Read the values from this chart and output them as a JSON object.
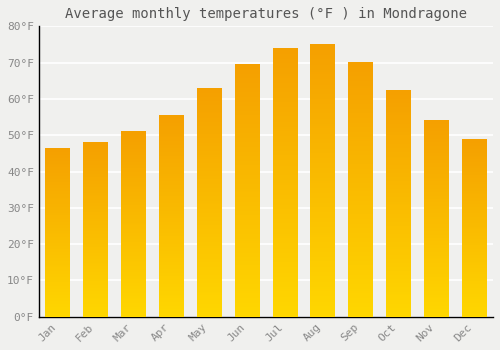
{
  "title": "Average monthly temperatures (°F ) in Mondragone",
  "months": [
    "Jan",
    "Feb",
    "Mar",
    "Apr",
    "May",
    "Jun",
    "Jul",
    "Aug",
    "Sep",
    "Oct",
    "Nov",
    "Dec"
  ],
  "values": [
    46.5,
    48.0,
    51.0,
    55.5,
    63.0,
    69.5,
    74.0,
    75.0,
    70.0,
    62.5,
    54.0,
    49.0
  ],
  "bar_color_bottom": "#FFD700",
  "bar_color_top": "#F5A000",
  "ylim": [
    0,
    80
  ],
  "yticks": [
    0,
    10,
    20,
    30,
    40,
    50,
    60,
    70,
    80
  ],
  "ytick_labels": [
    "0°F",
    "10°F",
    "20°F",
    "30°F",
    "40°F",
    "50°F",
    "60°F",
    "70°F",
    "80°F"
  ],
  "background_color": "#f0f0ee",
  "grid_color": "#ffffff",
  "title_fontsize": 10,
  "tick_fontsize": 8,
  "font_family": "monospace",
  "spine_color": "#000000",
  "tick_color": "#888888"
}
